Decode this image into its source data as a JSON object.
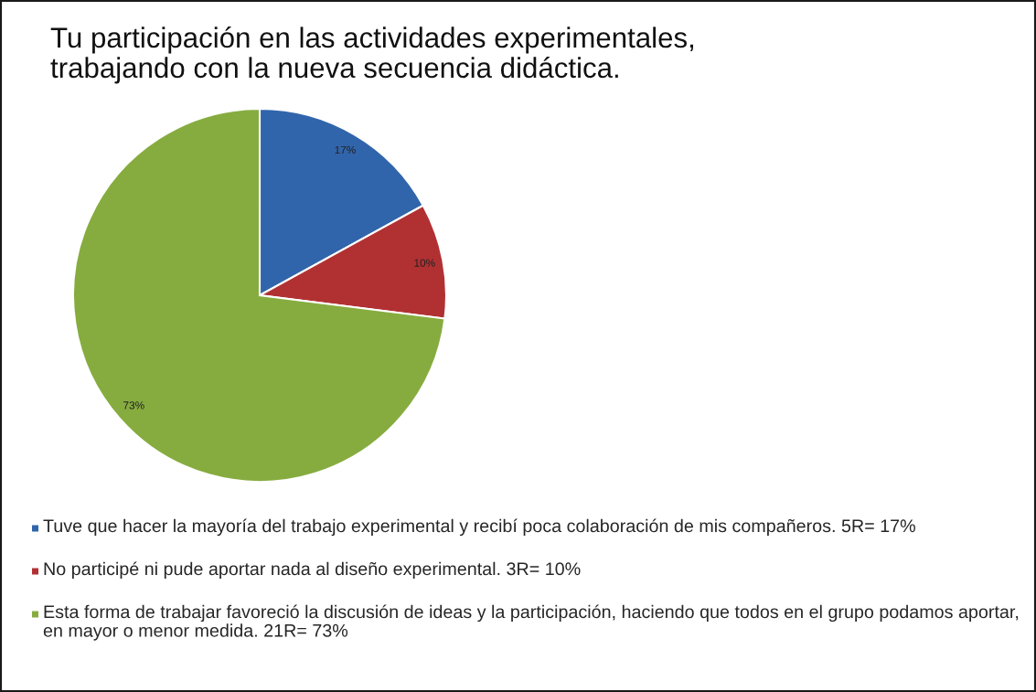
{
  "chart_data": {
    "type": "pie",
    "title": "Tu participación en las actividades experimentales,\ntrabajando con la nueva secuencia didáctica.",
    "categories": [
      "Tuve que hacer la mayoría del trabajo experimental y recibí poca colaboración de mis compañeros. 5R= 17%",
      "No participé ni pude aportar nada al diseño experimental. 3R= 10%",
      "Esta forma de trabajar favoreció la discusión de ideas y la participación, haciendo que todos en el grupo podamos aportar, en mayor o menor medida. 21R= 73%"
    ],
    "values": [
      17,
      10,
      73
    ],
    "colors": [
      "#3165ab",
      "#b13133",
      "#86ac3f"
    ],
    "value_labels": [
      "17%",
      "10%",
      "73%"
    ],
    "legend": "bottom"
  }
}
